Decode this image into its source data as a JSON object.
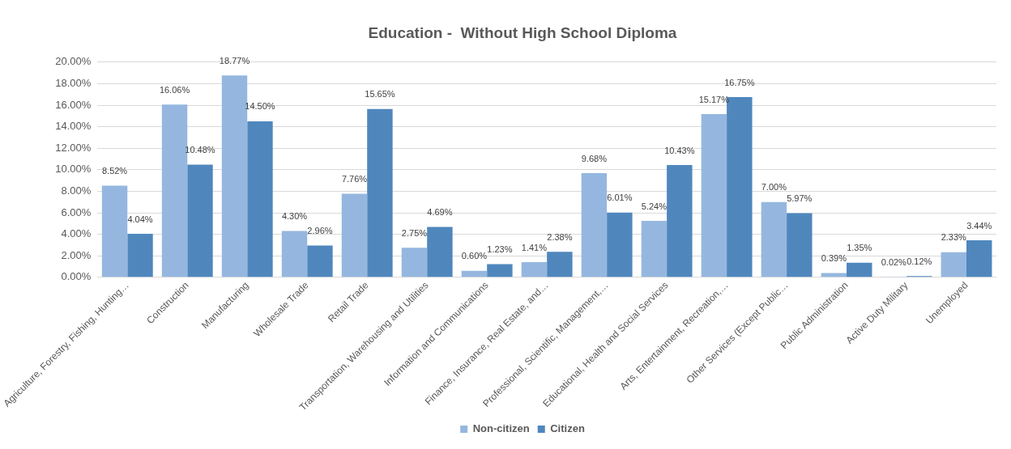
{
  "chart_data": {
    "type": "bar",
    "title": "Education -  Without High School Diploma",
    "categories": [
      "Agriculture, Forestry, Fishing, Hunting…",
      "Construction",
      "Manufacturing",
      "Wholesale Trade",
      "Retail Trade",
      "Transportation, Warehousing and Utilities",
      "Information and Communications",
      "Finance, Insurance, Real Estate, and…",
      "Professional, Scientific, Management,…",
      "Educational, Health and Social Services",
      "Arts, Entertainment, Recreation,…",
      "Other Services (Except Public…",
      "Public Administration",
      "Active Duty Military",
      "Unemployed"
    ],
    "series": [
      {
        "name": "Non-citizen",
        "color": "#95b7df",
        "values": [
          8.52,
          16.06,
          18.77,
          4.3,
          7.76,
          2.75,
          0.6,
          1.41,
          9.68,
          5.24,
          15.17,
          7.0,
          0.39,
          0.02,
          2.33
        ],
        "value_labels": [
          "8.52%",
          "16.06%",
          "18.77%",
          "4.30%",
          "7.76%",
          "2.75%",
          "0.60%",
          "1.41%",
          "9.68%",
          "5.24%",
          "15.17%",
          "7.00%",
          "0.39%",
          "0.02%",
          "2.33%"
        ]
      },
      {
        "name": "Citizen",
        "color": "#4f87bd",
        "values": [
          4.04,
          10.48,
          14.5,
          2.96,
          15.65,
          4.69,
          1.23,
          2.38,
          6.01,
          10.43,
          16.75,
          5.97,
          1.35,
          0.12,
          3.44
        ],
        "value_labels": [
          "4.04%",
          "10.48%",
          "14.50%",
          "2.96%",
          "15.65%",
          "4.69%",
          "1.23%",
          "2.38%",
          "6.01%",
          "10.43%",
          "16.75%",
          "5.97%",
          "1.35%",
          "0.12%",
          "3.44%"
        ]
      }
    ],
    "ylim": [
      0,
      20
    ],
    "yticks": [
      {
        "value": 0,
        "label": "0.00%"
      },
      {
        "value": 2,
        "label": "2.00%"
      },
      {
        "value": 4,
        "label": "4.00%"
      },
      {
        "value": 6,
        "label": "6.00%"
      },
      {
        "value": 8,
        "label": "8.00%"
      },
      {
        "value": 10,
        "label": "10.00%"
      },
      {
        "value": 12,
        "label": "12.00%"
      },
      {
        "value": 14,
        "label": "14.00%"
      },
      {
        "value": 16,
        "label": "16.00%"
      },
      {
        "value": 18,
        "label": "18.00%"
      },
      {
        "value": 20,
        "label": "20.00%"
      }
    ],
    "grid": "y",
    "legend": "bottom"
  }
}
